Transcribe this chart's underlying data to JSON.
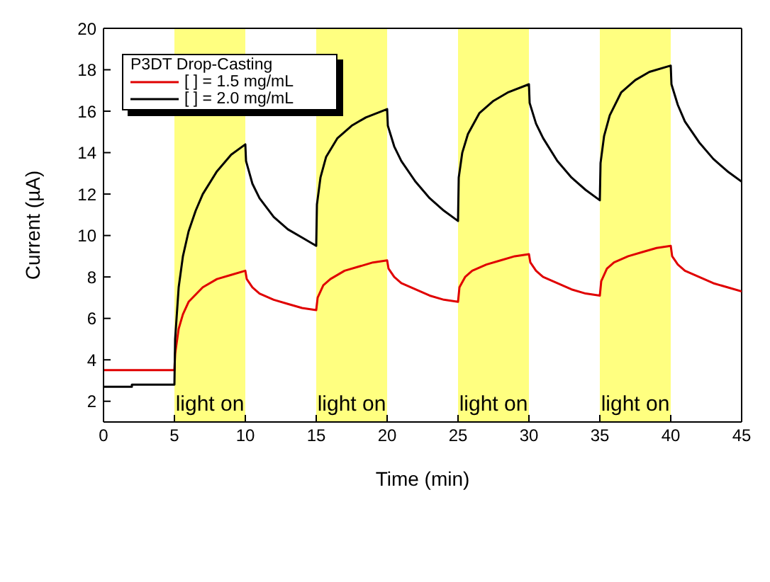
{
  "chart_data": {
    "type": "line",
    "xlabel": "Time (min)",
    "ylabel": "Current (µA)",
    "legend_title": "P3DT Drop-Casting",
    "legend": "top left",
    "marker": "none",
    "line_style": "solid",
    "xlim": [
      0,
      45
    ],
    "xticks": [
      0,
      5,
      10,
      15,
      20,
      25,
      30,
      35,
      40,
      45
    ],
    "ylim": [
      1,
      20
    ],
    "yticks": [
      2,
      4,
      6,
      8,
      10,
      12,
      14,
      16,
      18,
      20
    ],
    "bands": [
      {
        "axis": "x",
        "from": 5,
        "to": 10,
        "label": "light on",
        "color": "#ffff80"
      },
      {
        "axis": "x",
        "from": 15,
        "to": 20,
        "label": "light on",
        "color": "#ffff80"
      },
      {
        "axis": "x",
        "from": 25,
        "to": 30,
        "label": "light on",
        "color": "#ffff80"
      },
      {
        "axis": "x",
        "from": 35,
        "to": 40,
        "label": "light on",
        "color": "#ffff80"
      }
    ],
    "series": [
      {
        "name": "[ ] = 1.5 mg/mL",
        "color": "#e00000",
        "x": [
          0,
          5,
          5.05,
          5.3,
          5.6,
          6,
          7,
          8,
          9,
          10,
          10.1,
          10.5,
          11,
          12,
          13,
          14,
          15,
          15.1,
          15.5,
          16,
          17,
          18,
          19,
          20,
          20.1,
          20.5,
          21,
          22,
          23,
          24,
          25,
          25.1,
          25.5,
          26,
          27,
          28,
          29,
          30,
          30.1,
          30.5,
          31,
          32,
          33,
          34,
          35,
          35.1,
          35.5,
          36,
          37,
          38,
          39,
          40,
          40.1,
          40.5,
          41,
          42,
          43,
          44,
          45
        ],
        "values": [
          3.5,
          3.5,
          4.3,
          5.5,
          6.2,
          6.8,
          7.5,
          7.9,
          8.1,
          8.3,
          7.9,
          7.5,
          7.2,
          6.9,
          6.7,
          6.5,
          6.4,
          7.0,
          7.6,
          7.9,
          8.3,
          8.5,
          8.7,
          8.8,
          8.4,
          8.0,
          7.7,
          7.4,
          7.1,
          6.9,
          6.8,
          7.5,
          8.0,
          8.3,
          8.6,
          8.8,
          9.0,
          9.1,
          8.7,
          8.3,
          8.0,
          7.7,
          7.4,
          7.2,
          7.1,
          7.8,
          8.4,
          8.7,
          9.0,
          9.2,
          9.4,
          9.5,
          9.0,
          8.6,
          8.3,
          8.0,
          7.7,
          7.5,
          7.3
        ]
      },
      {
        "name": "[ ] = 2.0 mg/mL",
        "color": "#000000",
        "x": [
          0,
          2,
          2,
          5,
          5.05,
          5.3,
          5.6,
          6,
          6.5,
          7,
          8,
          9,
          10,
          10.05,
          10.5,
          11,
          12,
          13,
          14,
          15,
          15.05,
          15.3,
          15.7,
          16.5,
          17.5,
          18.5,
          20,
          20.05,
          20.5,
          21,
          22,
          23,
          24,
          25,
          25.05,
          25.3,
          25.7,
          26.5,
          27.5,
          28.5,
          30,
          30.05,
          30.5,
          31,
          32,
          33,
          34,
          35,
          35.05,
          35.3,
          35.7,
          36.5,
          37.5,
          38.5,
          40,
          40.05,
          40.5,
          41,
          42,
          43,
          44,
          45
        ],
        "values": [
          2.7,
          2.7,
          2.8,
          2.8,
          5,
          7.5,
          9.0,
          10.2,
          11.2,
          12.0,
          13.1,
          13.9,
          14.4,
          13.6,
          12.5,
          11.8,
          10.9,
          10.3,
          9.9,
          9.5,
          11.5,
          12.8,
          13.8,
          14.7,
          15.3,
          15.7,
          16.1,
          15.3,
          14.3,
          13.6,
          12.6,
          11.8,
          11.2,
          10.7,
          12.8,
          14.0,
          14.9,
          15.9,
          16.5,
          16.9,
          17.3,
          16.4,
          15.4,
          14.7,
          13.6,
          12.8,
          12.2,
          11.7,
          13.5,
          14.8,
          15.8,
          16.9,
          17.5,
          17.9,
          18.2,
          17.3,
          16.3,
          15.5,
          14.5,
          13.7,
          13.1,
          12.6
        ]
      }
    ]
  }
}
